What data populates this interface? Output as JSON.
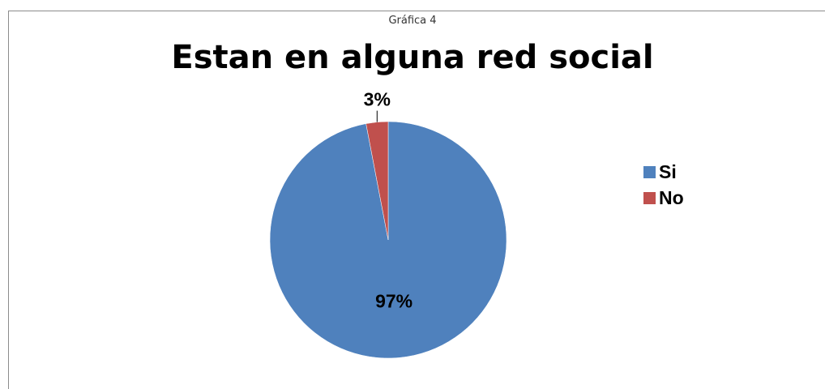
{
  "caption": "Gráfica 4",
  "chart_data": {
    "type": "pie",
    "title": "Estan en alguna red social",
    "categories": [
      "Si",
      "No"
    ],
    "values": [
      97,
      3
    ],
    "data_labels": [
      "97%",
      "3%"
    ],
    "colors": [
      "#4F81BD",
      "#C0504D"
    ],
    "legend": {
      "placement": "right",
      "items": [
        "Si",
        "No"
      ]
    }
  }
}
